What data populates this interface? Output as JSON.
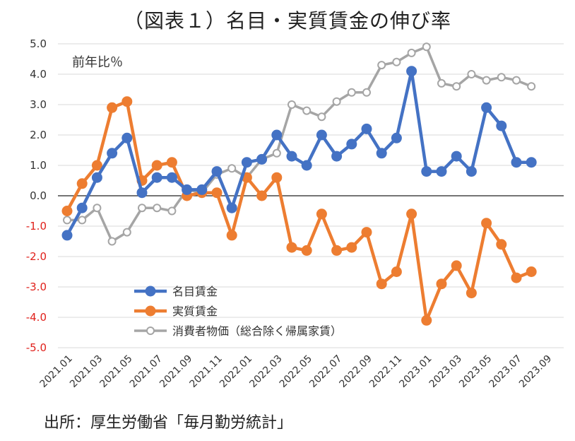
{
  "chart_data": {
    "type": "line",
    "title": "（図表１）名目・実質賃金の伸び率",
    "unit_label": "前年比％",
    "source": "出所：厚生労働省「毎月勤労統計」",
    "x": [
      "2021.01",
      "2021.02",
      "2021.03",
      "2021.04",
      "2021.05",
      "2021.06",
      "2021.07",
      "2021.08",
      "2021.09",
      "2021.10",
      "2021.11",
      "2021.12",
      "2022.01",
      "2022.02",
      "2022.03",
      "2022.04",
      "2022.05",
      "2022.06",
      "2022.07",
      "2022.08",
      "2022.09",
      "2022.10",
      "2022.11",
      "2022.12",
      "2023.01",
      "2023.02",
      "2023.03",
      "2023.04",
      "2023.05",
      "2023.06",
      "2023.07",
      "2023.08"
    ],
    "x_tick_labels": [
      "2021.01",
      "2021.03",
      "2021.05",
      "2021.07",
      "2021.09",
      "2021.11",
      "2022.01",
      "2022.03",
      "2022.05",
      "2022.07",
      "2022.09",
      "2022.11",
      "2023.01",
      "2023.03",
      "2023.05",
      "2023.07",
      "2023.09"
    ],
    "y_ticks": [
      "5.0",
      "4.0",
      "3.0",
      "2.0",
      "1.0",
      "0.0",
      "-1.0",
      "-2.0",
      "-3.0",
      "-4.0",
      "-5.0"
    ],
    "ylim": [
      -5,
      5
    ],
    "grid": true,
    "legend_position": "lower-left",
    "colors": {
      "negative_tick": "#e0201b",
      "axis_zero": "#222222",
      "grid": "#d9d9d9"
    },
    "series": [
      {
        "name": "名目賃金",
        "color": "#4472c4",
        "style": "filled",
        "values": [
          -1.3,
          -0.4,
          0.6,
          1.4,
          1.9,
          0.1,
          0.6,
          0.6,
          0.2,
          0.2,
          0.8,
          -0.4,
          1.1,
          1.2,
          2.0,
          1.3,
          1.0,
          2.0,
          1.3,
          1.7,
          2.2,
          1.4,
          1.9,
          4.1,
          0.8,
          0.8,
          1.3,
          0.8,
          2.9,
          2.3,
          1.1,
          1.1
        ]
      },
      {
        "name": "実質賃金",
        "color": "#ed7d31",
        "style": "filled",
        "values": [
          -0.5,
          0.4,
          1.0,
          2.9,
          3.1,
          0.5,
          1.0,
          1.1,
          0.0,
          0.1,
          0.1,
          -1.3,
          0.6,
          0.0,
          0.6,
          -1.7,
          -1.8,
          -0.6,
          -1.8,
          -1.7,
          -1.2,
          -2.9,
          -2.5,
          -0.6,
          -4.1,
          -2.9,
          -2.3,
          -3.2,
          -0.9,
          -1.6,
          -2.7,
          -2.5
        ]
      },
      {
        "name": "消費者物価（総合除く帰属家賃）",
        "color": "#a5a5a5",
        "style": "hollow",
        "values": [
          -0.8,
          -0.8,
          -0.4,
          -1.5,
          -1.2,
          -0.4,
          -0.4,
          -0.5,
          0.2,
          0.1,
          0.7,
          0.9,
          0.6,
          1.2,
          1.4,
          3.0,
          2.8,
          2.6,
          3.1,
          3.4,
          3.4,
          4.3,
          4.4,
          4.7,
          4.9,
          3.7,
          3.6,
          4.0,
          3.8,
          3.9,
          3.8,
          3.6
        ]
      }
    ]
  }
}
